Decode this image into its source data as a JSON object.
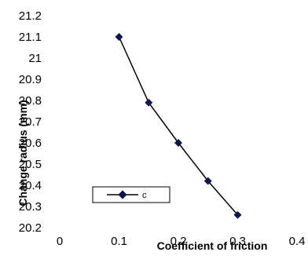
{
  "chart_data": {
    "type": "line",
    "title": "",
    "xlabel": "Coefficient of friction",
    "ylabel": "Change radius (mm)",
    "xlim": [
      0,
      0.4
    ],
    "ylim": [
      20.2,
      21.2
    ],
    "x_ticks": [
      "0",
      "0.1",
      "0.2",
      "0.3",
      "0.4"
    ],
    "y_ticks": [
      "20.2",
      "20.3",
      "20.4",
      "20.5",
      "20.6",
      "20.7",
      "20.8",
      "20.9",
      "21",
      "21.1",
      "21.2"
    ],
    "series": [
      {
        "name": "c",
        "x": [
          0.1,
          0.15,
          0.2,
          0.25,
          0.3
        ],
        "y": [
          21.1,
          20.79,
          20.6,
          20.42,
          20.26
        ]
      }
    ],
    "grid": false,
    "legend": {
      "position": "lower-left",
      "text": "c"
    },
    "colors": {
      "line": "#000000",
      "marker": "#0a1450"
    }
  }
}
